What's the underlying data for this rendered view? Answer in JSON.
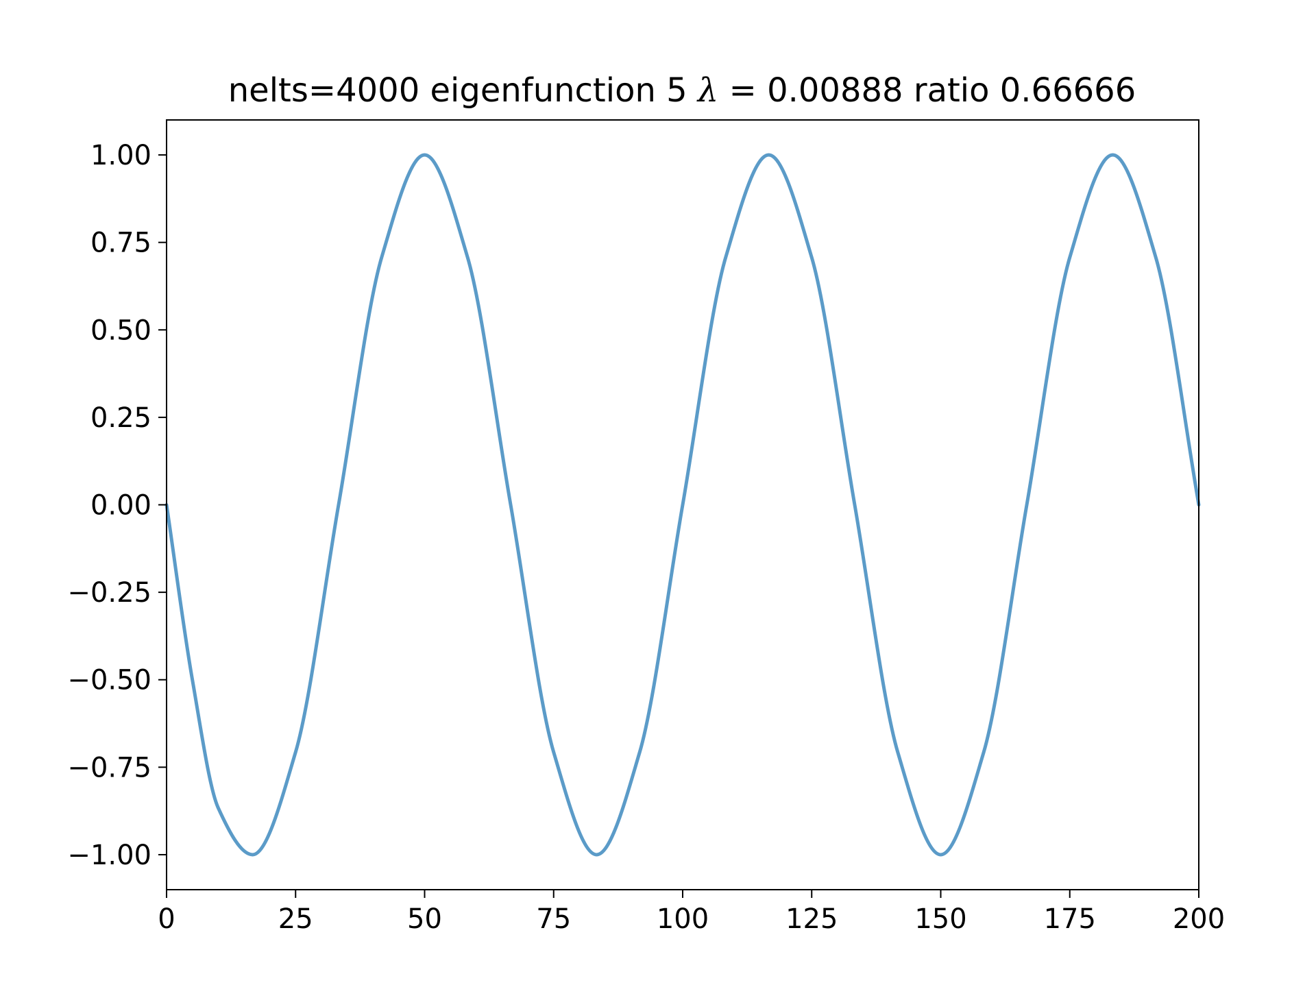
{
  "chart_data": {
    "type": "line",
    "title": {
      "prefix": "nelts=4000  eigenfunction 5 ",
      "symbol": "λ",
      "suffix": " = 0.00888 ratio 0.66666"
    },
    "xlabel": "",
    "ylabel": "",
    "xlim": [
      0,
      200
    ],
    "ylim": [
      -1.1,
      1.1
    ],
    "x_ticks": [
      0,
      25,
      50,
      75,
      100,
      125,
      150,
      175,
      200
    ],
    "x_tick_labels": [
      "0",
      "25",
      "50",
      "75",
      "100",
      "125",
      "150",
      "175",
      "200"
    ],
    "y_ticks": [
      1.0,
      0.75,
      0.5,
      0.25,
      0.0,
      -0.25,
      -0.5,
      -0.75,
      -1.0
    ],
    "y_tick_labels": [
      "1.00",
      "0.75",
      "0.50",
      "0.25",
      "0.00",
      "−0.25",
      "−0.50",
      "−0.75",
      "−1.00"
    ],
    "grid": false,
    "legend": "none",
    "series": [
      {
        "color": "#5b9bc8",
        "x": [
          0,
          5,
          10,
          16.67,
          25,
          33.33,
          41.67,
          50,
          58.33,
          66.67,
          75,
          83.33,
          91.67,
          100,
          108.33,
          116.67,
          125,
          133.33,
          141.67,
          150,
          158.33,
          166.67,
          175,
          183.33,
          191.67,
          200
        ],
        "y": [
          0.0,
          -0.5,
          -0.866,
          -1.0,
          -0.707,
          0.0,
          0.707,
          1.0,
          0.707,
          0.0,
          -0.707,
          -1.0,
          -0.707,
          0.0,
          0.707,
          1.0,
          0.707,
          0.0,
          -0.707,
          -1.0,
          -0.707,
          0.0,
          0.707,
          1.0,
          0.707,
          0.0
        ]
      }
    ]
  }
}
